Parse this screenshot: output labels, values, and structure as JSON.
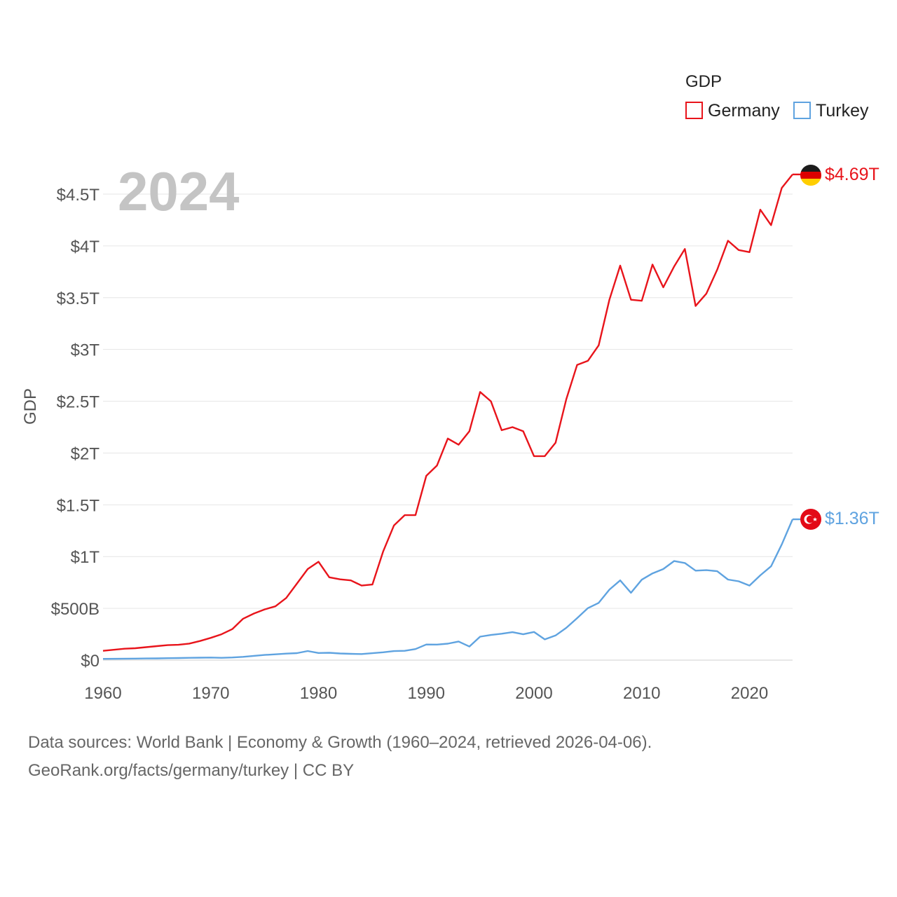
{
  "chart_data": {
    "type": "line",
    "title": "",
    "year_label": "2024",
    "xlabel": "",
    "ylabel": "GDP",
    "xlim": [
      1960,
      2024
    ],
    "ylim": [
      0,
      4.5
    ],
    "x_ticks": [
      1960,
      1970,
      1980,
      1990,
      2000,
      2010,
      2020
    ],
    "x_tick_labels": [
      "1960",
      "1970",
      "1980",
      "1990",
      "2000",
      "2010",
      "2020"
    ],
    "y_ticks": [
      0,
      0.5,
      1,
      1.5,
      2,
      2.5,
      3,
      3.5,
      4,
      4.5
    ],
    "y_tick_labels": [
      "$0",
      "$500B",
      "$1T",
      "$1.5T",
      "$2T",
      "$2.5T",
      "$3T",
      "$3.5T",
      "$4T",
      "$4.5T"
    ],
    "units": "trillion USD",
    "legend": {
      "title": "GDP",
      "entries": [
        "Germany",
        "Turkey"
      ],
      "position": "top-right"
    },
    "x": [
      1960,
      1961,
      1962,
      1963,
      1964,
      1965,
      1966,
      1967,
      1968,
      1969,
      1970,
      1971,
      1972,
      1973,
      1974,
      1975,
      1976,
      1977,
      1978,
      1979,
      1980,
      1981,
      1982,
      1983,
      1984,
      1985,
      1986,
      1987,
      1988,
      1989,
      1990,
      1991,
      1992,
      1993,
      1994,
      1995,
      1996,
      1997,
      1998,
      1999,
      2000,
      2001,
      2002,
      2003,
      2004,
      2005,
      2006,
      2007,
      2008,
      2009,
      2010,
      2011,
      2012,
      2013,
      2014,
      2015,
      2016,
      2017,
      2018,
      2019,
      2020,
      2021,
      2022,
      2023,
      2024
    ],
    "series": [
      {
        "name": "Germany",
        "color": "#e8141b",
        "end_label": "$4.69T",
        "values": [
          0.09,
          0.1,
          0.11,
          0.115,
          0.125,
          0.135,
          0.145,
          0.148,
          0.16,
          0.185,
          0.215,
          0.25,
          0.3,
          0.4,
          0.45,
          0.49,
          0.52,
          0.6,
          0.74,
          0.88,
          0.95,
          0.8,
          0.78,
          0.77,
          0.72,
          0.73,
          1.05,
          1.3,
          1.4,
          1.4,
          1.78,
          1.88,
          2.14,
          2.08,
          2.21,
          2.59,
          2.5,
          2.22,
          2.25,
          2.21,
          1.97,
          1.97,
          2.1,
          2.52,
          2.85,
          2.89,
          3.04,
          3.48,
          3.81,
          3.48,
          3.47,
          3.82,
          3.6,
          3.8,
          3.97,
          3.42,
          3.54,
          3.77,
          4.05,
          3.96,
          3.94,
          4.35,
          4.2,
          4.56,
          4.69
        ]
      },
      {
        "name": "Turkey",
        "color": "#5fa3e0",
        "end_label": "$1.36T",
        "values": [
          0.012,
          0.013,
          0.014,
          0.015,
          0.016,
          0.017,
          0.019,
          0.02,
          0.022,
          0.024,
          0.025,
          0.022,
          0.026,
          0.032,
          0.041,
          0.05,
          0.056,
          0.063,
          0.068,
          0.088,
          0.069,
          0.071,
          0.064,
          0.061,
          0.059,
          0.067,
          0.076,
          0.087,
          0.09,
          0.107,
          0.151,
          0.15,
          0.159,
          0.18,
          0.131,
          0.227,
          0.243,
          0.255,
          0.27,
          0.25,
          0.272,
          0.2,
          0.238,
          0.312,
          0.405,
          0.502,
          0.553,
          0.681,
          0.77,
          0.65,
          0.777,
          0.838,
          0.88,
          0.957,
          0.938,
          0.864,
          0.869,
          0.859,
          0.778,
          0.761,
          0.72,
          0.819,
          0.906,
          1.118,
          1.36
        ]
      }
    ]
  },
  "footer": {
    "line1": "Data sources: World Bank | Economy & Growth (1960–2024, retrieved 2026-04-06).",
    "line2": "GeoRank.org/facts/germany/turkey | CC BY"
  }
}
